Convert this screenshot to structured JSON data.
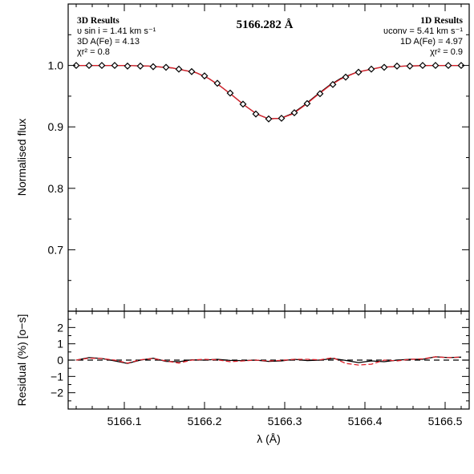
{
  "chart_data": [
    {
      "type": "line",
      "title": "5166.282 Å",
      "xlabel": "",
      "ylabel": "Normalised flux",
      "xlim": [
        5166.03,
        5166.53
      ],
      "ylim": [
        0.6,
        1.1
      ],
      "x_ticks": [
        "5166.1",
        "5166.2",
        "5166.3",
        "5166.4",
        "5166.5"
      ],
      "y_ticks": [
        "0.7",
        "0.8",
        "0.9",
        "1.0"
      ],
      "annotations_left": {
        "heading": "3D Results",
        "line1": "υ sin i = 1.41 km s⁻¹",
        "line2": "3D A(Fe) = 4.13",
        "line3": "χr² = 0.8"
      },
      "annotations_right": {
        "heading": "1D Results",
        "line1": "υconv = 5.41 km s⁻¹",
        "line2": "1D A(Fe) = 4.97",
        "line3": "χr² = 0.9"
      },
      "series": [
        {
          "name": "",
          "style": "diamond markers",
          "color": "#000000",
          "x": [
            5166.04,
            5166.056,
            5166.072,
            5166.088,
            5166.104,
            5166.12,
            5166.136,
            5166.152,
            5166.168,
            5166.184,
            5166.2,
            5166.216,
            5166.232,
            5166.248,
            5166.264,
            5166.28,
            5166.296,
            5166.312,
            5166.328,
            5166.344,
            5166.36,
            5166.376,
            5166.392,
            5166.408,
            5166.424,
            5166.44,
            5166.456,
            5166.472,
            5166.488,
            5166.504,
            5166.52
          ],
          "y": [
            1.0,
            1.0,
            1.0,
            1.0,
            0.999,
            0.999,
            0.998,
            0.997,
            0.994,
            0.99,
            0.983,
            0.971,
            0.955,
            0.937,
            0.921,
            0.913,
            0.914,
            0.923,
            0.938,
            0.954,
            0.969,
            0.981,
            0.989,
            0.994,
            0.997,
            0.999,
            0.999,
            1.0,
            1.0,
            1.0,
            1.0
          ]
        },
        {
          "name": "",
          "style": "solid",
          "color": "#000000",
          "x": [
            5166.04,
            5166.07,
            5166.1,
            5166.13,
            5166.16,
            5166.19,
            5166.205,
            5166.22,
            5166.235,
            5166.25,
            5166.265,
            5166.28,
            5166.295,
            5166.31,
            5166.325,
            5166.34,
            5166.355,
            5166.37,
            5166.39,
            5166.42,
            5166.45,
            5166.48,
            5166.52
          ],
          "y": [
            1.0,
            1.0,
            1.0,
            0.999,
            0.996,
            0.988,
            0.979,
            0.966,
            0.951,
            0.935,
            0.921,
            0.913,
            0.914,
            0.922,
            0.936,
            0.952,
            0.967,
            0.979,
            0.989,
            0.997,
            0.999,
            1.0,
            1.0
          ]
        },
        {
          "name": "",
          "style": "solid",
          "color": "#e0202a",
          "x": [
            5166.04,
            5166.07,
            5166.1,
            5166.13,
            5166.16,
            5166.19,
            5166.205,
            5166.22,
            5166.235,
            5166.25,
            5166.265,
            5166.28,
            5166.295,
            5166.31,
            5166.325,
            5166.34,
            5166.355,
            5166.37,
            5166.39,
            5166.42,
            5166.45,
            5166.48,
            5166.52
          ],
          "y": [
            1.0,
            1.0,
            1.0,
            0.999,
            0.996,
            0.988,
            0.979,
            0.966,
            0.951,
            0.935,
            0.921,
            0.913,
            0.914,
            0.921,
            0.935,
            0.951,
            0.966,
            0.978,
            0.989,
            0.997,
            0.999,
            1.0,
            1.0
          ]
        }
      ]
    },
    {
      "type": "line",
      "title": "",
      "xlabel": "λ (Å)",
      "ylabel": "Residual (%) [o−s]",
      "xlim": [
        5166.03,
        5166.53
      ],
      "ylim": [
        -3,
        3
      ],
      "x_ticks": [
        "5166.1",
        "5166.2",
        "5166.3",
        "5166.4",
        "5166.5"
      ],
      "y_ticks": [
        "−2",
        "−1",
        "0",
        "1",
        "2"
      ],
      "reference_line": {
        "y": 0,
        "style": "dashed",
        "color": "#000000"
      },
      "series": [
        {
          "name": "",
          "style": "solid",
          "color": "#000000",
          "x": [
            5166.04,
            5166.056,
            5166.072,
            5166.088,
            5166.104,
            5166.12,
            5166.136,
            5166.152,
            5166.168,
            5166.184,
            5166.2,
            5166.216,
            5166.232,
            5166.248,
            5166.264,
            5166.28,
            5166.296,
            5166.312,
            5166.328,
            5166.344,
            5166.36,
            5166.376,
            5166.392,
            5166.408,
            5166.424,
            5166.44,
            5166.456,
            5166.472,
            5166.488,
            5166.504,
            5166.52
          ],
          "y": [
            0.0,
            0.15,
            0.1,
            -0.05,
            -0.2,
            0.0,
            0.12,
            -0.08,
            -0.1,
            0.02,
            0.0,
            0.05,
            -0.02,
            -0.03,
            0.0,
            -0.08,
            -0.05,
            0.05,
            -0.03,
            0.0,
            0.1,
            -0.02,
            -0.15,
            -0.05,
            -0.1,
            0.0,
            0.05,
            0.05,
            0.2,
            0.15,
            0.18
          ]
        },
        {
          "name": "",
          "style": "dashed",
          "color": "#e0202a",
          "x": [
            5166.04,
            5166.056,
            5166.072,
            5166.088,
            5166.104,
            5166.12,
            5166.136,
            5166.152,
            5166.168,
            5166.184,
            5166.2,
            5166.216,
            5166.232,
            5166.248,
            5166.264,
            5166.28,
            5166.296,
            5166.312,
            5166.328,
            5166.344,
            5166.36,
            5166.376,
            5166.392,
            5166.408,
            5166.424,
            5166.44,
            5166.456,
            5166.472,
            5166.488,
            5166.504,
            5166.52
          ],
          "y": [
            0.0,
            0.12,
            0.1,
            0.0,
            -0.18,
            0.02,
            0.1,
            -0.05,
            -0.18,
            0.0,
            0.05,
            0.02,
            -0.1,
            -0.05,
            0.0,
            -0.05,
            -0.02,
            0.05,
            0.05,
            0.02,
            0.15,
            -0.2,
            -0.3,
            -0.25,
            0.0,
            -0.05,
            0.05,
            0.08,
            0.2,
            0.15,
            0.18
          ]
        }
      ]
    }
  ]
}
